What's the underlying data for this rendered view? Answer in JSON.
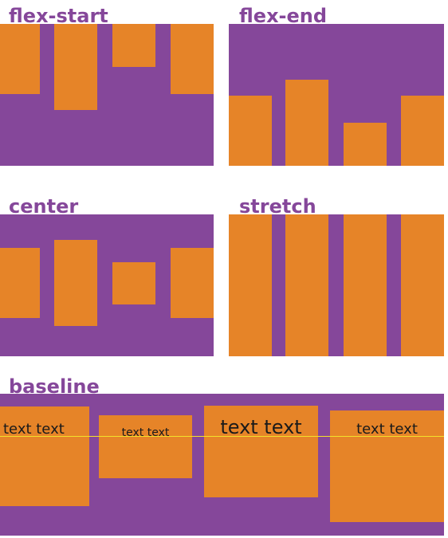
{
  "colors": {
    "container": "#85479a",
    "item": "#e68428",
    "title": "#85479a",
    "baseline_line": "#f3e12a",
    "item_text": "#1a1a1a"
  },
  "panels": {
    "flex_start": {
      "title": "flex-start"
    },
    "flex_end": {
      "title": "flex-end"
    },
    "center": {
      "title": "center"
    },
    "stretch": {
      "title": "stretch"
    },
    "baseline": {
      "title": "baseline",
      "items": [
        "text text",
        "text text",
        "text text",
        "text text"
      ]
    }
  }
}
